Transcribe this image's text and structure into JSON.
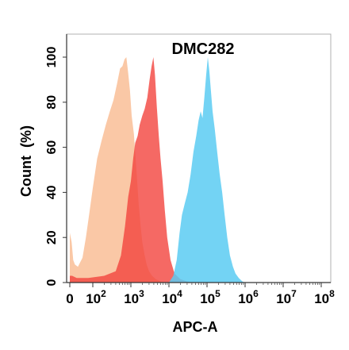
{
  "chart_data": {
    "type": "area",
    "title": "DMC282",
    "xlabel": "APC-A",
    "ylabel": "Count  (%)",
    "xscale": "biexponential-log",
    "xlim": [
      0,
      100000000
    ],
    "ylim": [
      0,
      100
    ],
    "grid": false,
    "legend": "none",
    "x_tick_labels": [
      {
        "value": 0,
        "base": "0",
        "exp": ""
      },
      {
        "value": 100,
        "base": "10",
        "exp": "2"
      },
      {
        "value": 1000,
        "base": "10",
        "exp": "3"
      },
      {
        "value": 10000,
        "base": "10",
        "exp": "4"
      },
      {
        "value": 100000,
        "base": "10",
        "exp": "5"
      },
      {
        "value": 1000000,
        "base": "10",
        "exp": "6"
      },
      {
        "value": 10000000,
        "base": "10",
        "exp": "7"
      },
      {
        "value": 100000000,
        "base": "10",
        "exp": "8"
      }
    ],
    "y_tick_labels": [
      "0",
      "20",
      "40",
      "60",
      "80",
      "100"
    ],
    "y_ticks": [
      0,
      20,
      40,
      60,
      80,
      100
    ],
    "series": [
      {
        "color": "#F9BE96",
        "opacity": 0.85,
        "points": [
          [
            0,
            22
          ],
          [
            8,
            18
          ],
          [
            15,
            10
          ],
          [
            22,
            8
          ],
          [
            35,
            7
          ],
          [
            55,
            11
          ],
          [
            70,
            20
          ],
          [
            85,
            31
          ],
          [
            100,
            42
          ],
          [
            130,
            55
          ],
          [
            170,
            63
          ],
          [
            220,
            70
          ],
          [
            280,
            76
          ],
          [
            350,
            81
          ],
          [
            430,
            88
          ],
          [
            520,
            95
          ],
          [
            600,
            96
          ],
          [
            680,
            99
          ],
          [
            760,
            100
          ],
          [
            850,
            93
          ],
          [
            950,
            85
          ],
          [
            1050,
            74
          ],
          [
            1200,
            66
          ],
          [
            1400,
            50
          ],
          [
            1600,
            35
          ],
          [
            1800,
            25
          ],
          [
            2000,
            18
          ],
          [
            2300,
            12
          ],
          [
            2600,
            8
          ],
          [
            3000,
            5
          ],
          [
            3600,
            3
          ],
          [
            4500,
            1.5
          ],
          [
            6000,
            0.5
          ],
          [
            8000,
            0
          ]
        ]
      },
      {
        "color": "#F2433D",
        "opacity": 0.8,
        "points": [
          [
            0,
            3
          ],
          [
            10,
            3
          ],
          [
            30,
            2
          ],
          [
            80,
            2
          ],
          [
            200,
            3
          ],
          [
            400,
            5
          ],
          [
            550,
            12
          ],
          [
            700,
            25
          ],
          [
            850,
            38
          ],
          [
            1000,
            45
          ],
          [
            1150,
            55
          ],
          [
            1300,
            62
          ],
          [
            1500,
            65
          ],
          [
            1700,
            70
          ],
          [
            2000,
            74
          ],
          [
            2300,
            77
          ],
          [
            2700,
            82
          ],
          [
            3100,
            90
          ],
          [
            3500,
            96
          ],
          [
            3900,
            100
          ],
          [
            4300,
            92
          ],
          [
            4800,
            78
          ],
          [
            5400,
            65
          ],
          [
            6000,
            55
          ],
          [
            6800,
            45
          ],
          [
            7800,
            32
          ],
          [
            9000,
            20
          ],
          [
            11000,
            10
          ],
          [
            14000,
            4
          ],
          [
            20000,
            1.5
          ],
          [
            30000,
            0.5
          ],
          [
            45000,
            0
          ]
        ]
      },
      {
        "color": "#5BCBF2",
        "opacity": 0.85,
        "points": [
          [
            10000,
            0
          ],
          [
            13000,
            3
          ],
          [
            16000,
            10
          ],
          [
            19000,
            22
          ],
          [
            22000,
            30
          ],
          [
            26000,
            35
          ],
          [
            31000,
            40
          ],
          [
            37000,
            48
          ],
          [
            44000,
            58
          ],
          [
            52000,
            65
          ],
          [
            60000,
            72
          ],
          [
            68000,
            76
          ],
          [
            76000,
            73
          ],
          [
            85000,
            82
          ],
          [
            95000,
            92
          ],
          [
            105000,
            100
          ],
          [
            115000,
            94
          ],
          [
            125000,
            86
          ],
          [
            140000,
            76
          ],
          [
            160000,
            68
          ],
          [
            185000,
            58
          ],
          [
            215000,
            48
          ],
          [
            250000,
            40
          ],
          [
            290000,
            30
          ],
          [
            340000,
            20
          ],
          [
            400000,
            12
          ],
          [
            480000,
            7
          ],
          [
            560000,
            4
          ],
          [
            680000,
            2
          ],
          [
            850000,
            0.5
          ],
          [
            1000000,
            0
          ]
        ]
      }
    ]
  }
}
